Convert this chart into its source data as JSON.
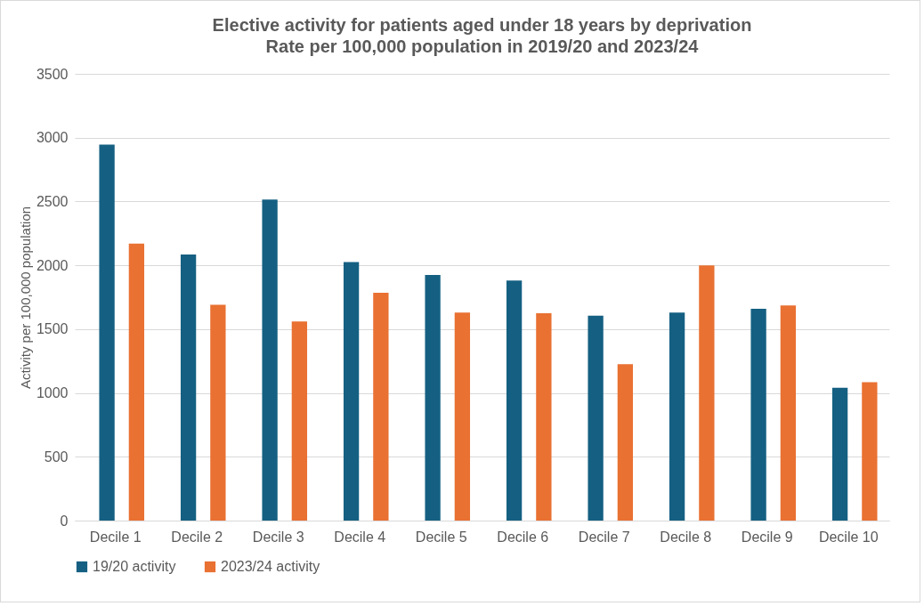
{
  "chart_data": {
    "type": "bar",
    "title": "Elective activity for patients aged under 18 years by deprivation",
    "subtitle": "Rate per 100,000 population in 2019/20 and 2023/24",
    "ylabel": "Activity per 100,000 population",
    "categories": [
      "Decile 1",
      "Decile 2",
      "Decile 3",
      "Decile 4",
      "Decile 5",
      "Decile 6",
      "Decile 7",
      "Decile 8",
      "Decile 9",
      "Decile 10"
    ],
    "series": [
      {
        "name": "19/20 activity",
        "color": "#156082",
        "values": [
          2945,
          2085,
          2515,
          2025,
          1925,
          1880,
          1605,
          1630,
          1660,
          1040
        ]
      },
      {
        "name": "2023/24 activity",
        "color": "#e97132",
        "values": [
          2170,
          1690,
          1560,
          1785,
          1630,
          1625,
          1225,
          2000,
          1685,
          1085
        ]
      }
    ],
    "ylim": [
      0,
      3500
    ],
    "yticks": [
      0,
      500,
      1000,
      1500,
      2000,
      2500,
      3000,
      3500
    ],
    "grid": "y",
    "legend": "bottom"
  }
}
